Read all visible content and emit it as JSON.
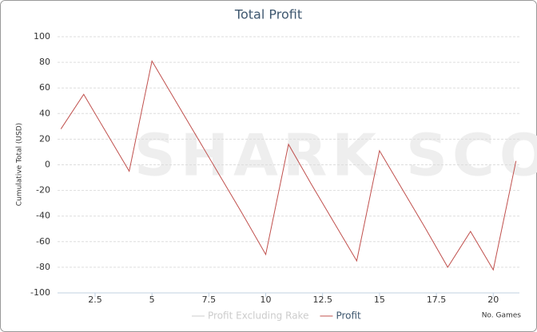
{
  "chart_data": {
    "type": "line",
    "title": "Total Profit",
    "watermark": "SHARK SCOPE",
    "ylabel": "Cumulative Total (USD)",
    "xlabel": "No. Games",
    "x": [
      1,
      2,
      3,
      4,
      5,
      6,
      7,
      8,
      9,
      10,
      11,
      12,
      13,
      14,
      15,
      16,
      17,
      18,
      19,
      20,
      21
    ],
    "series": [
      {
        "name": "Profit Excluding Rake",
        "color": "#cccccc",
        "hidden": true,
        "values": [
          null,
          null,
          null,
          null,
          null,
          null,
          null,
          null,
          null,
          null,
          null,
          null,
          null,
          null,
          null,
          null,
          null,
          null,
          null,
          null,
          null
        ]
      },
      {
        "name": "Profit",
        "color": "#c0504d",
        "values": [
          28,
          55,
          25,
          -5,
          81,
          51,
          21,
          -9,
          -39,
          -70,
          16,
          -15,
          -45,
          -75,
          11,
          -19,
          -49,
          -80,
          -52,
          -82,
          3
        ]
      }
    ],
    "xlim": [
      0.85,
      21.15
    ],
    "xticks": [
      2.5,
      5,
      7.5,
      10,
      12.5,
      15,
      17.5,
      20
    ],
    "ylim": [
      -100,
      100
    ],
    "yticks": [
      -100,
      -80,
      -60,
      -40,
      -20,
      0,
      20,
      40,
      60,
      80,
      100
    ],
    "grid": true
  }
}
